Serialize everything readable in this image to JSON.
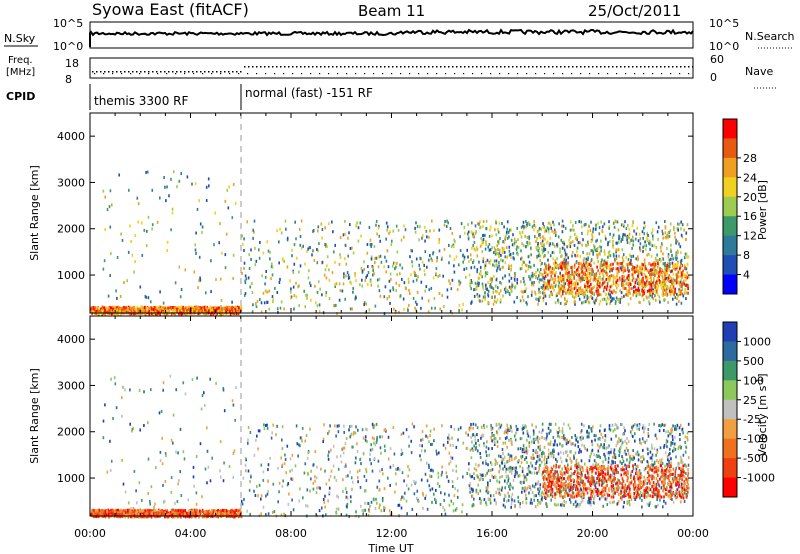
{
  "header": {
    "station": "Syowa East (fitACF)",
    "beam": "Beam 11",
    "date": "25/Oct/2011"
  },
  "strip": {
    "nsky_label": "N.Sky",
    "nsky_ticks": [
      "10^5",
      "10^0"
    ],
    "nsearch_label": "N.Search",
    "nsearch_ticks": [
      "10^5",
      "10^0"
    ],
    "freq_label_1": "Freq.",
    "freq_label_2": "[MHz]",
    "freq_ticks": [
      "18",
      "8"
    ],
    "nave_label": "Nave",
    "nave_ticks": [
      "60",
      "0"
    ],
    "cpid_label": "CPID",
    "cpid_segments": [
      "themis 3300 RF",
      "normal (fast) -151 RF"
    ]
  },
  "chart_data": [
    {
      "type": "heatmap",
      "name": "power",
      "ylabel": "Slant Range [km]",
      "y_ticks": [
        "1000",
        "2000",
        "3000",
        "4000"
      ],
      "y_values": [
        1000,
        2000,
        3000,
        4000
      ],
      "ylim": [
        180,
        4500
      ],
      "xlim": [
        "00:00",
        "24:00"
      ],
      "colorbar_label": "Power [dB]",
      "colorbar_ticks": [
        "4",
        "8",
        "12",
        "16",
        "20",
        "24",
        "28"
      ],
      "colorbar_colors": [
        "#0000ff",
        "#1f4fb4",
        "#2d7a9a",
        "#3c9a6a",
        "#9ccc50",
        "#f0d020",
        "#f0a020",
        "#e85a10",
        "#ff0000"
      ],
      "color_range": [
        0,
        30
      ]
    },
    {
      "type": "heatmap",
      "name": "velocity",
      "ylabel": "Slant Range [km]",
      "y_ticks": [
        "1000",
        "2000",
        "3000",
        "4000"
      ],
      "y_values": [
        1000,
        2000,
        3000,
        4000
      ],
      "ylim": [
        180,
        4500
      ],
      "xlim": [
        "00:00",
        "24:00"
      ],
      "colorbar_label": "Velocity [m s",
      "colorbar_label_sup": "-1",
      "colorbar_label_end": "]",
      "colorbar_ticks": [
        "-1000",
        "-500",
        "-100",
        "-25",
        "25",
        "100",
        "500",
        "1000"
      ],
      "colorbar_colors": [
        "#ff0000",
        "#f04010",
        "#f07020",
        "#f0a040",
        "#c0c0c0",
        "#8cc85a",
        "#3c9a6a",
        "#2d6aa0",
        "#1f3fb4"
      ]
    }
  ],
  "x_axis": {
    "label": "Time UT",
    "ticks": [
      "00:00",
      "04:00",
      "08:00",
      "12:00",
      "16:00",
      "20:00",
      "00:00"
    ],
    "hours": [
      0,
      4,
      8,
      12,
      16,
      20,
      24
    ]
  }
}
